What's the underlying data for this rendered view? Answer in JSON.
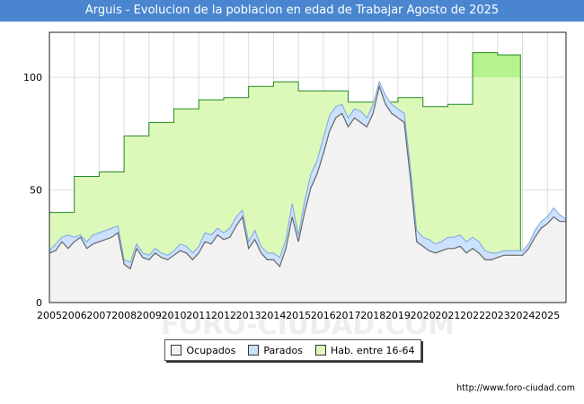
{
  "title": "Arguis - Evolucion de la poblacion en edad de Trabajar Agosto de 2025",
  "source": "http://www.foro-ciudad.com",
  "watermark": "FORO-CIUDAD.COM",
  "colors": {
    "title_bg": "#4a86d0",
    "ocupados_fill": "#f2f2f2",
    "ocupados_line": "#666666",
    "parados_fill": "#cce0ff",
    "parados_line": "#7aa6e0",
    "hab_fill": "#ddf9b9",
    "hab_fill_dark": "#b6f28d",
    "hab_line": "#228b22",
    "grid": "#dddddd"
  },
  "legend": [
    {
      "label": "Ocupados",
      "color": "#f2f2f2"
    },
    {
      "label": "Parados",
      "color": "#cce0ff"
    },
    {
      "label": "Hab. entre 16-64",
      "color": "#ddf9b9"
    }
  ],
  "chart_data": {
    "type": "area",
    "title": "Arguis - Evolucion de la poblacion en edad de Trabajar Agosto de 2025",
    "xlim": [
      2005,
      2025.75
    ],
    "ylim": [
      0,
      120
    ],
    "x_ticks": [
      2005,
      2006,
      2007,
      2008,
      2009,
      2010,
      2011,
      2012,
      2013,
      2014,
      2015,
      2016,
      2017,
      2018,
      2019,
      2020,
      2021,
      2022,
      2023,
      2024,
      2025
    ],
    "y_ticks": [
      0,
      50,
      100
    ],
    "grid": true,
    "legend_position": "bottom",
    "hab_steps": [
      {
        "year": 2005,
        "value": 40
      },
      {
        "year": 2006,
        "value": 56
      },
      {
        "year": 2007,
        "value": 58
      },
      {
        "year": 2008,
        "value": 74
      },
      {
        "year": 2009,
        "value": 80
      },
      {
        "year": 2010,
        "value": 86
      },
      {
        "year": 2011,
        "value": 90
      },
      {
        "year": 2012,
        "value": 91
      },
      {
        "year": 2013,
        "value": 96
      },
      {
        "year": 2014,
        "value": 98
      },
      {
        "year": 2015,
        "value": 94
      },
      {
        "year": 2016,
        "value": 94
      },
      {
        "year": 2017,
        "value": 89
      },
      {
        "year": 2018,
        "value": 89
      },
      {
        "year": 2019,
        "value": 91
      },
      {
        "year": 2020,
        "value": 87
      },
      {
        "year": 2021,
        "value": 88
      },
      {
        "year": 2022,
        "value": 111
      },
      {
        "year": 2023,
        "value": 110
      }
    ],
    "hab_end": 2023.92,
    "series": [
      {
        "name": "Parados",
        "x": [
          2005,
          2005.25,
          2005.5,
          2005.75,
          2006,
          2006.25,
          2006.5,
          2006.75,
          2007,
          2007.25,
          2007.5,
          2007.75,
          2008,
          2008.25,
          2008.5,
          2008.75,
          2009,
          2009.25,
          2009.5,
          2009.75,
          2010,
          2010.25,
          2010.5,
          2010.75,
          2011,
          2011.25,
          2011.5,
          2011.75,
          2012,
          2012.25,
          2012.5,
          2012.75,
          2013,
          2013.25,
          2013.5,
          2013.75,
          2014,
          2014.25,
          2014.5,
          2014.75,
          2015,
          2015.25,
          2015.5,
          2015.75,
          2016,
          2016.25,
          2016.5,
          2016.75,
          2017,
          2017.25,
          2017.5,
          2017.75,
          2018,
          2018.25,
          2018.5,
          2018.75,
          2019,
          2019.25,
          2019.5,
          2019.75,
          2020,
          2020.25,
          2020.5,
          2020.75,
          2021,
          2021.25,
          2021.5,
          2021.75,
          2022,
          2022.25,
          2022.5,
          2022.75,
          2023,
          2023.25,
          2023.5,
          2023.75,
          2024,
          2024.25,
          2024.5,
          2024.75,
          2025,
          2025.25,
          2025.5,
          2025.75
        ],
        "values": [
          23,
          26,
          29,
          30,
          29,
          30,
          27,
          30,
          31,
          32,
          33,
          34,
          19,
          18,
          26,
          22,
          21,
          24,
          22,
          21,
          23,
          26,
          25,
          22,
          25,
          31,
          30,
          33,
          31,
          33,
          38,
          41,
          27,
          32,
          25,
          22,
          22,
          20,
          28,
          44,
          30,
          45,
          57,
          63,
          73,
          83,
          87,
          88,
          82,
          86,
          85,
          82,
          88,
          98,
          92,
          88,
          86,
          84,
          60,
          32,
          29,
          28,
          26,
          27,
          29,
          29,
          30,
          27,
          29,
          27,
          23,
          22,
          22,
          23,
          23,
          23,
          23,
          26,
          32,
          36,
          38,
          42,
          39,
          37
        ]
      },
      {
        "name": "Ocupados",
        "x": [
          2005,
          2005.25,
          2005.5,
          2005.75,
          2006,
          2006.25,
          2006.5,
          2006.75,
          2007,
          2007.25,
          2007.5,
          2007.75,
          2008,
          2008.25,
          2008.5,
          2008.75,
          2009,
          2009.25,
          2009.5,
          2009.75,
          2010,
          2010.25,
          2010.5,
          2010.75,
          2011,
          2011.25,
          2011.5,
          2011.75,
          2012,
          2012.25,
          2012.5,
          2012.75,
          2013,
          2013.25,
          2013.5,
          2013.75,
          2014,
          2014.25,
          2014.5,
          2014.75,
          2015,
          2015.25,
          2015.5,
          2015.75,
          2016,
          2016.25,
          2016.5,
          2016.75,
          2017,
          2017.25,
          2017.5,
          2017.75,
          2018,
          2018.25,
          2018.5,
          2018.75,
          2019,
          2019.25,
          2019.5,
          2019.75,
          2020,
          2020.25,
          2020.5,
          2020.75,
          2021,
          2021.25,
          2021.5,
          2021.75,
          2022,
          2022.25,
          2022.5,
          2022.75,
          2023,
          2023.25,
          2023.5,
          2023.75,
          2024,
          2024.25,
          2024.5,
          2024.75,
          2025,
          2025.25,
          2025.5,
          2025.75
        ],
        "values": [
          22,
          23,
          27,
          24,
          27,
          29,
          24,
          26,
          27,
          28,
          29,
          31,
          17,
          15,
          24,
          20,
          19,
          22,
          20,
          19,
          21,
          23,
          22,
          19,
          22,
          27,
          26,
          30,
          28,
          29,
          34,
          38,
          24,
          28,
          22,
          19,
          19,
          16,
          24,
          38,
          27,
          40,
          51,
          57,
          66,
          76,
          82,
          84,
          78,
          82,
          80,
          78,
          84,
          96,
          88,
          84,
          82,
          80,
          55,
          27,
          25,
          23,
          22,
          23,
          24,
          24,
          25,
          22,
          24,
          22,
          19,
          19,
          20,
          21,
          21,
          21,
          21,
          24,
          29,
          33,
          35,
          38,
          36,
          36
        ]
      }
    ]
  }
}
